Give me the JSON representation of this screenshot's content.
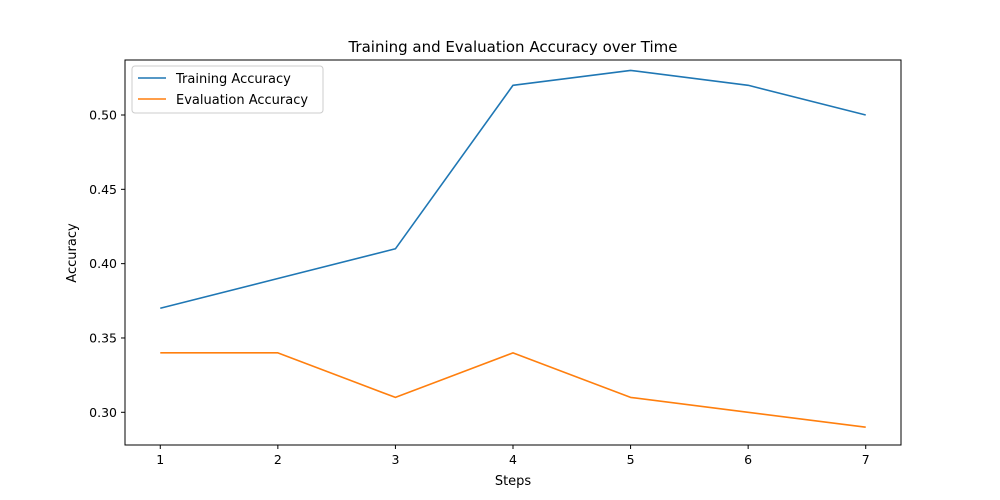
{
  "chart_data": {
    "type": "line",
    "title": "Training and Evaluation Accuracy over Time",
    "xlabel": "Steps",
    "ylabel": "Accuracy",
    "x": [
      1,
      2,
      3,
      4,
      5,
      6,
      7
    ],
    "xlim": [
      0.7,
      7.3
    ],
    "ylim": [
      0.278,
      0.537
    ],
    "xticks": [
      "1",
      "2",
      "3",
      "4",
      "5",
      "6",
      "7"
    ],
    "yticks": [
      "0.30",
      "0.35",
      "0.40",
      "0.45",
      "0.50"
    ],
    "grid": false,
    "legend_position": "top-left",
    "series": [
      {
        "name": "Training Accuracy",
        "color": "#1f77b4",
        "values": [
          0.37,
          0.39,
          0.41,
          0.52,
          0.53,
          0.52,
          0.5
        ]
      },
      {
        "name": "Evaluation Accuracy",
        "color": "#ff7f0e",
        "values": [
          0.34,
          0.34,
          0.31,
          0.34,
          0.31,
          0.3,
          0.29
        ]
      }
    ]
  }
}
